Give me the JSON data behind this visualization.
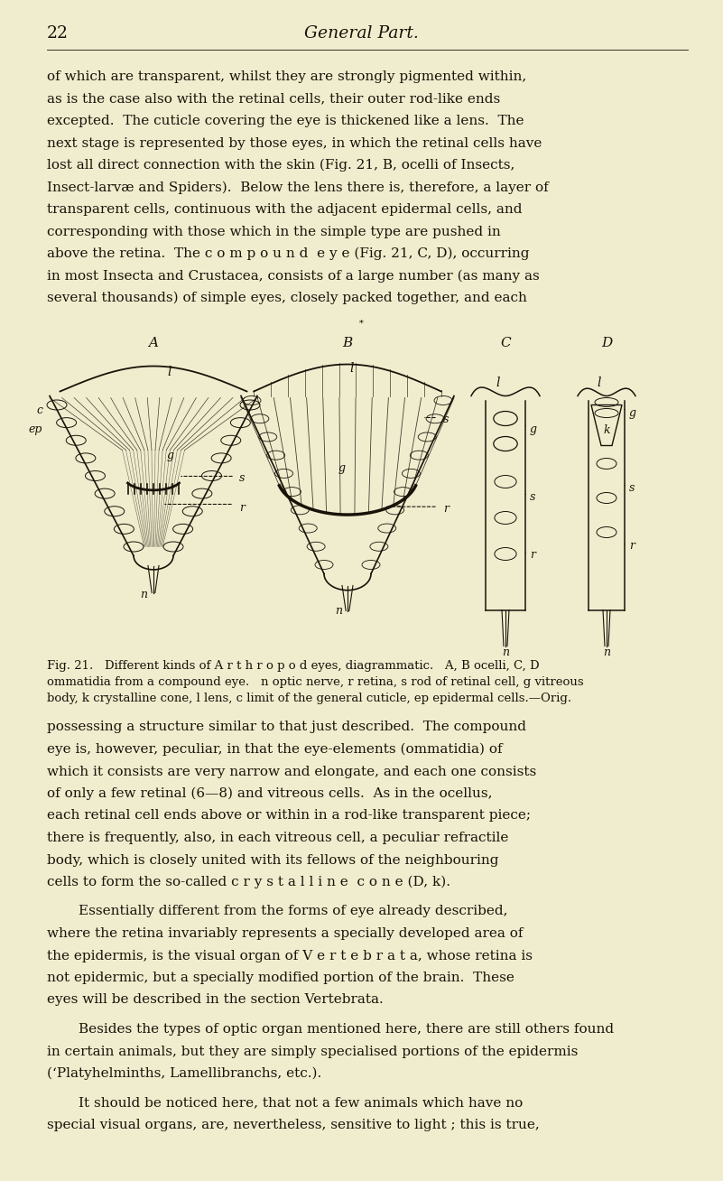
{
  "bg_color": "#f0edcf",
  "page_number": "22",
  "header_title": "General Part.",
  "body_text_lines": [
    "of which are transparent, whilst they are strongly pigmented within,",
    "as is the case also with the retinal cells, their outer rod-like ends",
    "excepted.  The cuticle covering the eye is thickened like a lens.  The",
    "next stage is represented by those eyes, in which the retinal cells have",
    "lost all direct connection with the skin (Fig. 21, B, ocelli of Insects,",
    "Insect-larvæ and Spiders).  Below the lens there is, therefore, a layer of",
    "transparent cells, continuous with the adjacent epidermal cells, and",
    "corresponding with those which in the simple type are pushed in",
    "above the retina.  The c o m p o u n d  e y e (Fig. 21, C, D), occurring",
    "in most Insecta and Crustacea, consists of a large number (as many as",
    "several thousands) of simple eyes, closely packed together, and each"
  ],
  "fig_caption_lines": [
    "Fig. 21.   Different kinds of A r t h r o p o d eyes, diagrammatic.   A, B ocelli, C, D",
    "ommatidia from a compound eye.   n optic nerve, r retina, s rod of retinal cell, g vitreous",
    "body, k crystalline cone, l lens, c limit of the general cuticle, ep epidermal cells.—Orig."
  ],
  "body_text_lines2": [
    "possessing a structure similar to that just described.  The compound",
    "eye is, however, peculiar, in that the eye-elements (ommatidia) of",
    "which it consists are very narrow and elongate, and each one consists",
    "of only a few retinal (6—8) and vitreous cells.  As in the ocellus,",
    "each retinal cell ends above or within in a rod-like transparent piece;",
    "there is frequently, also, in each vitreous cell, a peculiar refractile",
    "body, which is closely united with its fellows of the neighbouring",
    "cells to form the so-called c r y s t a l l i n e  c o n e (D, k)."
  ],
  "body_text_lines3": [
    "Essentially different from the forms of eye already described,",
    "where the retina invariably represents a specially developed area of",
    "the epidermis, is the visual organ of V e r t e b r a t a, whose retina is",
    "not epidermic, but a specially modified portion of the brain.  These",
    "eyes will be described in the section Vertebrata."
  ],
  "body_text_lines4": [
    "Besides the types of optic organ mentioned here, there are still others found",
    "in certain animals, but they are simply specialised portions of the epidermis",
    "(‘Platyhelminths, Lamellibranchs, etc.)."
  ],
  "body_text_lines5": [
    "It should be noticed here, that not a few animals which have no",
    "special visual organs, are, nevertheless, sensitive to light ; this is true,"
  ],
  "ink_color": "#1a1208",
  "text_size": 11.0,
  "caption_size": 9.5,
  "header_size": 13.5
}
